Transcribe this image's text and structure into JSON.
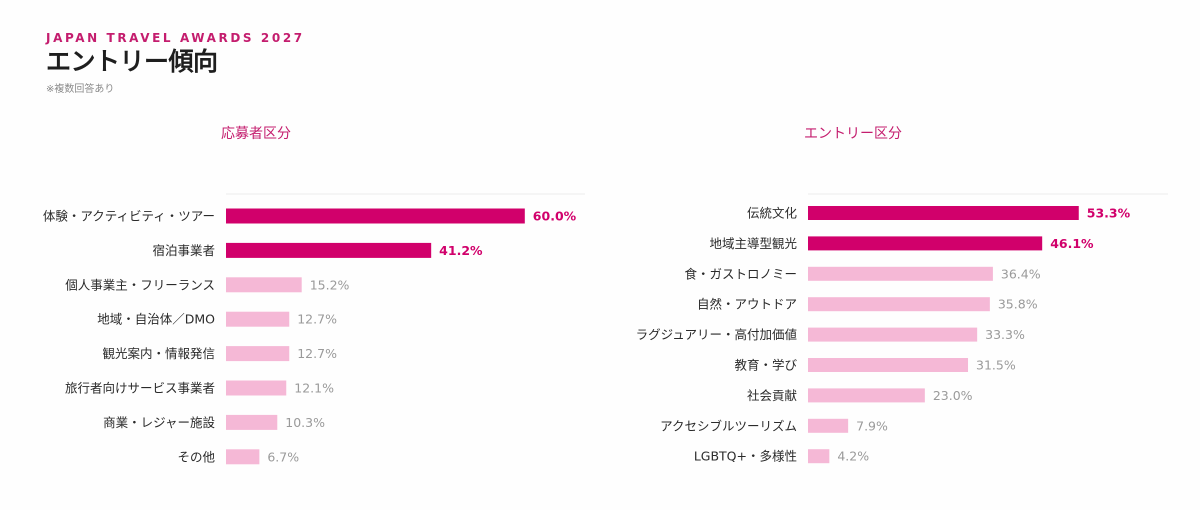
{
  "header": {
    "eyebrow": "JAPAN TRAVEL AWARDS 2027",
    "title": "エントリー傾向",
    "note": "※複数回答あり"
  },
  "colors": {
    "accent": "#d1006b",
    "light": "#f5b8d6",
    "grid": "#ececec"
  },
  "chart_data": [
    {
      "type": "bar",
      "orientation": "horizontal",
      "title": "応募者区分",
      "unit": "%",
      "categories": [
        "体験・アクティビティ・ツアー",
        "宿泊事業者",
        "個人事業主・フリーランス",
        "地域・自治体／DMO",
        "観光案内・情報発信",
        "旅行者向けサービス事業者",
        "商業・レジャー施設",
        "その他"
      ],
      "values": [
        60.0,
        41.2,
        15.2,
        12.7,
        12.7,
        12.1,
        10.3,
        6.7
      ],
      "value_labels": [
        "60.0%",
        "41.2%",
        "15.2%",
        "12.7%",
        "12.7%",
        "12.1%",
        "10.3%",
        "6.7%"
      ],
      "highlighted": [
        true,
        true,
        false,
        false,
        false,
        false,
        false,
        false
      ],
      "xlim": [
        0,
        100
      ],
      "grid": false
    },
    {
      "type": "bar",
      "orientation": "horizontal",
      "title": "エントリー区分",
      "unit": "%",
      "categories": [
        "伝統文化",
        "地域主導型観光",
        "食・ガストロノミー",
        "自然・アウトドア",
        "ラグジュアリー・高付加価値",
        "教育・学び",
        "社会貢献",
        "アクセシブルツーリズム",
        "LGBTQ+・多様性"
      ],
      "values": [
        53.3,
        46.1,
        36.4,
        35.8,
        33.3,
        31.5,
        23.0,
        7.9,
        4.2
      ],
      "value_labels": [
        "53.3%",
        "46.1%",
        "36.4%",
        "35.8%",
        "33.3%",
        "31.5%",
        "23.0%",
        "7.9%",
        "4.2%"
      ],
      "highlighted": [
        true,
        true,
        false,
        false,
        false,
        false,
        false,
        false,
        false
      ],
      "xlim": [
        0,
        100
      ],
      "grid": false
    }
  ]
}
